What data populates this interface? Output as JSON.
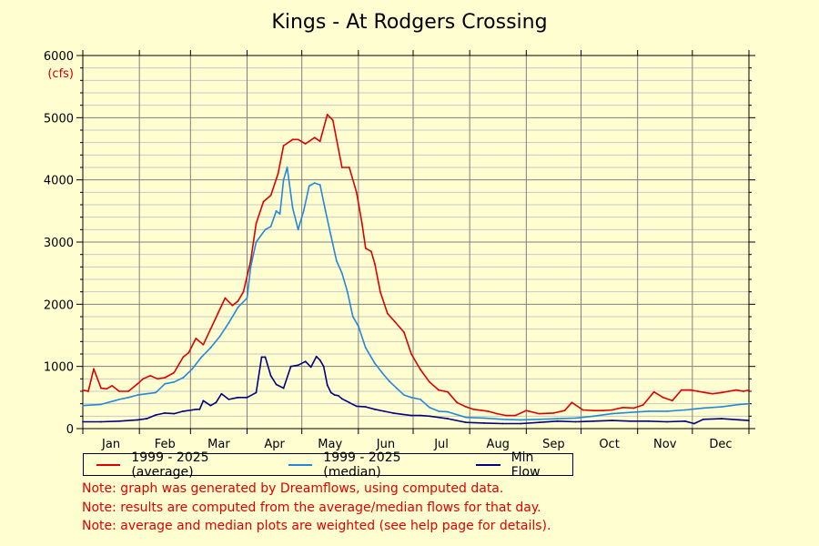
{
  "chart_data": {
    "type": "line",
    "title": "Kings - At Rodgers Crossing",
    "yunit": "(cfs)",
    "ylim": [
      0,
      6000
    ],
    "yticks": [
      0,
      1000,
      2000,
      3000,
      4000,
      5000,
      6000
    ],
    "xlim": [
      0,
      365
    ],
    "x_categories": [
      "Jan",
      "Feb",
      "Mar",
      "Apr",
      "May",
      "Jun",
      "Jul",
      "Aug",
      "Sep",
      "Oct",
      "Nov",
      "Dec"
    ],
    "grid": true,
    "legend_placement": "bottom-left",
    "series": [
      {
        "name": "1999 - 2025 (average)",
        "color": "#dd0000",
        "x": [
          0,
          3,
          6,
          10,
          13,
          16,
          20,
          25,
          30,
          33,
          37,
          41,
          45,
          50,
          55,
          58,
          62,
          66,
          70,
          74,
          78,
          82,
          85,
          88,
          92,
          95,
          99,
          103,
          107,
          110,
          115,
          118,
          122,
          127,
          130,
          134,
          137,
          142,
          146,
          150,
          153,
          155,
          158,
          160,
          163,
          167,
          171,
          176,
          180,
          185,
          190,
          195,
          200,
          205,
          210,
          214,
          218,
          222,
          227,
          232,
          237,
          243,
          250,
          258,
          264,
          268,
          274,
          280,
          285,
          290,
          293,
          296,
          302,
          307,
          313,
          318,
          323,
          328,
          333,
          337,
          341,
          345,
          350,
          354,
          358,
          362,
          365
        ],
        "y": [
          620,
          600,
          960,
          650,
          640,
          690,
          600,
          600,
          720,
          800,
          850,
          800,
          820,
          900,
          1150,
          1220,
          1450,
          1350,
          1600,
          1850,
          2100,
          1980,
          2050,
          2200,
          2700,
          3300,
          3650,
          3750,
          4100,
          4550,
          4650,
          4650,
          4580,
          4680,
          4620,
          5050,
          4960,
          4200,
          4200,
          3800,
          3300,
          2900,
          2850,
          2650,
          2200,
          1850,
          1720,
          1550,
          1200,
          950,
          750,
          620,
          590,
          420,
          350,
          310,
          295,
          280,
          240,
          210,
          210,
          290,
          240,
          250,
          290,
          420,
          300,
          290,
          290,
          300,
          320,
          340,
          330,
          380,
          590,
          500,
          450,
          620,
          620,
          600,
          580,
          560,
          580,
          600,
          620,
          600,
          620
        ]
      },
      {
        "name": "1999 - 2025 (median)",
        "color": "#2288dd",
        "x": [
          0,
          10,
          20,
          25,
          30,
          35,
          40,
          45,
          50,
          55,
          60,
          65,
          70,
          75,
          80,
          85,
          90,
          92,
          95,
          100,
          103,
          106,
          108,
          110,
          112,
          115,
          118,
          121,
          124,
          127,
          130,
          133,
          136,
          139,
          142,
          145,
          148,
          151,
          155,
          160,
          164,
          168,
          172,
          176,
          180,
          185,
          190,
          195,
          200,
          210,
          220,
          230,
          240,
          250,
          260,
          270,
          280,
          290,
          300,
          310,
          320,
          330,
          340,
          350,
          360,
          365
        ],
        "y": [
          370,
          390,
          470,
          500,
          540,
          560,
          580,
          720,
          750,
          820,
          960,
          1150,
          1300,
          1480,
          1700,
          1950,
          2100,
          2600,
          3000,
          3200,
          3250,
          3500,
          3450,
          4000,
          4200,
          3550,
          3200,
          3500,
          3900,
          3950,
          3920,
          3500,
          3100,
          2700,
          2500,
          2200,
          1800,
          1650,
          1300,
          1050,
          900,
          760,
          650,
          540,
          500,
          470,
          340,
          280,
          270,
          180,
          170,
          150,
          140,
          150,
          160,
          170,
          200,
          240,
          260,
          280,
          280,
          300,
          330,
          350,
          390,
          400
        ]
      },
      {
        "name": "Min Flow",
        "color": "#000080",
        "x": [
          0,
          10,
          20,
          30,
          35,
          40,
          45,
          50,
          55,
          60,
          62,
          64,
          66,
          70,
          73,
          76,
          80,
          85,
          90,
          95,
          98,
          100,
          103,
          106,
          110,
          114,
          118,
          122,
          125,
          128,
          130,
          132,
          134,
          136,
          138,
          140,
          142,
          144,
          146,
          148,
          150,
          155,
          160,
          165,
          170,
          175,
          180,
          185,
          190,
          200,
          210,
          220,
          230,
          240,
          250,
          260,
          270,
          280,
          290,
          300,
          310,
          320,
          330,
          335,
          340,
          350,
          360,
          365
        ],
        "y": [
          110,
          110,
          120,
          140,
          160,
          220,
          250,
          240,
          280,
          300,
          310,
          310,
          450,
          370,
          420,
          560,
          470,
          500,
          500,
          580,
          1150,
          1150,
          850,
          710,
          650,
          1000,
          1020,
          1080,
          990,
          1160,
          1100,
          1000,
          700,
          580,
          540,
          530,
          480,
          450,
          420,
          390,
          360,
          350,
          310,
          280,
          250,
          230,
          210,
          210,
          200,
          160,
          100,
          90,
          80,
          80,
          100,
          120,
          110,
          120,
          130,
          120,
          120,
          110,
          120,
          80,
          150,
          160,
          140,
          130
        ]
      }
    ]
  },
  "notes": [
    "Note: graph was generated by Dreamflows, using computed data.",
    "Note: results are computed from the average/median flows for that day.",
    "Note: average and median plots are weighted (see help page for details)."
  ]
}
